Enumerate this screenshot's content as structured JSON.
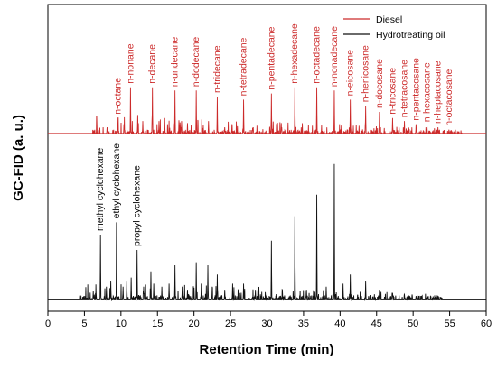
{
  "chart_data": {
    "type": "line",
    "xlabel": "Retention Time (min)",
    "ylabel": "GC-FID (a. u.)",
    "xlim": [
      0,
      60
    ],
    "ylim": [
      0,
      1
    ],
    "xticks": [
      0,
      5,
      10,
      15,
      20,
      25,
      30,
      35,
      40,
      45,
      50,
      55,
      60
    ],
    "yticks": [],
    "grid": false,
    "legend_position": "top-right",
    "series": [
      {
        "name": "Diesel",
        "color": "#cc2a2a",
        "baseline": 0.58,
        "peaks": [
          [
            8.1,
            0.02
          ],
          [
            9.6,
            0.05
          ],
          [
            10.4,
            0.03
          ],
          [
            11.3,
            0.15
          ],
          [
            12.3,
            0.06
          ],
          [
            13.0,
            0.04
          ],
          [
            14.3,
            0.15
          ],
          [
            15.2,
            0.04
          ],
          [
            16.0,
            0.05
          ],
          [
            17.4,
            0.14
          ],
          [
            18.3,
            0.04
          ],
          [
            19.1,
            0.03
          ],
          [
            20.3,
            0.14
          ],
          [
            21.1,
            0.03
          ],
          [
            22.0,
            0.04
          ],
          [
            23.2,
            0.12
          ],
          [
            24.2,
            0.02
          ],
          [
            25.2,
            0.03
          ],
          [
            26.8,
            0.11
          ],
          [
            28.1,
            0.02
          ],
          [
            30.6,
            0.13
          ],
          [
            32.0,
            0.02
          ],
          [
            33.8,
            0.15
          ],
          [
            36.8,
            0.15
          ],
          [
            39.2,
            0.14
          ],
          [
            41.4,
            0.11
          ],
          [
            43.5,
            0.09
          ],
          [
            45.4,
            0.07
          ],
          [
            47.2,
            0.05
          ],
          [
            48.8,
            0.04
          ],
          [
            50.4,
            0.03
          ],
          [
            51.9,
            0.025
          ],
          [
            53.4,
            0.02
          ],
          [
            54.9,
            0.012
          ]
        ]
      },
      {
        "name": "Hydrotreating oil",
        "color": "#111111",
        "baseline": 0.04,
        "peaks": [
          [
            6.2,
            0.025
          ],
          [
            6.6,
            0.02
          ],
          [
            7.2,
            0.21
          ],
          [
            8.0,
            0.04
          ],
          [
            8.6,
            0.06
          ],
          [
            9.4,
            0.25
          ],
          [
            10.3,
            0.04
          ],
          [
            10.8,
            0.06
          ],
          [
            11.4,
            0.07
          ],
          [
            12.2,
            0.16
          ],
          [
            13.1,
            0.04
          ],
          [
            14.1,
            0.09
          ],
          [
            14.5,
            0.05
          ],
          [
            15.6,
            0.04
          ],
          [
            16.6,
            0.05
          ],
          [
            17.4,
            0.11
          ],
          [
            18.4,
            0.04
          ],
          [
            19.1,
            0.03
          ],
          [
            20.3,
            0.12
          ],
          [
            21.0,
            0.05
          ],
          [
            21.9,
            0.11
          ],
          [
            22.5,
            0.04
          ],
          [
            23.2,
            0.08
          ],
          [
            24.2,
            0.03
          ],
          [
            25.3,
            0.05
          ],
          [
            26.8,
            0.05
          ],
          [
            28.4,
            0.03
          ],
          [
            30.6,
            0.19
          ],
          [
            32.1,
            0.03
          ],
          [
            33.8,
            0.27
          ],
          [
            35.4,
            0.03
          ],
          [
            36.8,
            0.34
          ],
          [
            38.1,
            0.04
          ],
          [
            39.2,
            0.44
          ],
          [
            40.4,
            0.05
          ],
          [
            41.4,
            0.08
          ],
          [
            43.5,
            0.06
          ],
          [
            45.4,
            0.03
          ],
          [
            47.2,
            0.02
          ],
          [
            48.8,
            0.015
          ],
          [
            50.4,
            0.01
          ],
          [
            52.0,
            0.008
          ]
        ]
      }
    ],
    "labels": [
      {
        "text": "n-octane",
        "x": 9.6,
        "series": 0
      },
      {
        "text": "n-nonane",
        "x": 11.3,
        "series": 0
      },
      {
        "text": "n-decane",
        "x": 14.3,
        "series": 0
      },
      {
        "text": "n-undecane",
        "x": 17.4,
        "series": 0
      },
      {
        "text": "n-dodecane",
        "x": 20.3,
        "series": 0
      },
      {
        "text": "n-tridecane",
        "x": 23.2,
        "series": 0
      },
      {
        "text": "n-tetradecane",
        "x": 26.8,
        "series": 0
      },
      {
        "text": "n-pentadecane",
        "x": 30.6,
        "series": 0
      },
      {
        "text": "n-hexadecane",
        "x": 33.8,
        "series": 0
      },
      {
        "text": "n-octadecane",
        "x": 36.8,
        "series": 0
      },
      {
        "text": "n-nonadecane",
        "x": 39.2,
        "series": 0
      },
      {
        "text": "n-eicosane",
        "x": 41.4,
        "series": 0
      },
      {
        "text": "n-henicosane",
        "x": 43.5,
        "series": 0
      },
      {
        "text": "n-docosane",
        "x": 45.4,
        "series": 0
      },
      {
        "text": "n-tricosane",
        "x": 47.2,
        "series": 0
      },
      {
        "text": "n-tetracosane",
        "x": 48.8,
        "series": 0
      },
      {
        "text": "n-pentacosane",
        "x": 50.4,
        "series": 0
      },
      {
        "text": "n-hexacosane",
        "x": 51.9,
        "series": 0
      },
      {
        "text": "n-heptacosane",
        "x": 53.4,
        "series": 0
      },
      {
        "text": "n-octacosane",
        "x": 54.9,
        "series": 0
      },
      {
        "text": "methyl cyclohexane",
        "x": 7.2,
        "series": 1
      },
      {
        "text": "ethyl cyclohexane",
        "x": 9.4,
        "series": 1
      },
      {
        "text": "propyl cyclohexane",
        "x": 12.2,
        "series": 1
      }
    ]
  }
}
